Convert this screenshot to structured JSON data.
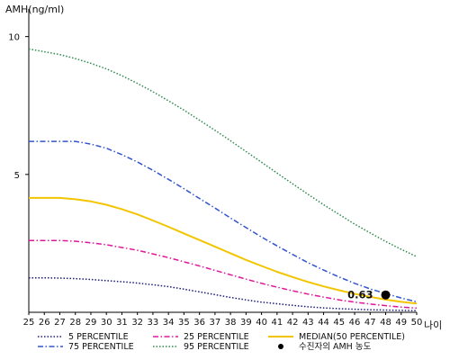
{
  "chart_data": {
    "type": "line",
    "ylabel": "AMH(ng/ml)",
    "xlabel": "나이",
    "x": [
      25,
      26,
      27,
      28,
      29,
      30,
      31,
      32,
      33,
      34,
      35,
      36,
      37,
      38,
      39,
      40,
      41,
      42,
      43,
      44,
      45,
      46,
      47,
      48,
      49,
      50
    ],
    "x_tick_labels": [
      "25",
      "26",
      "27",
      "28",
      "29",
      "30",
      "31",
      "32",
      "33",
      "34",
      "35",
      "36",
      "37",
      "38",
      "39",
      "40",
      "41",
      "42",
      "43",
      "44",
      "45",
      "46",
      "47",
      "48",
      "49",
      "50"
    ],
    "y_ticks": [
      5,
      10
    ],
    "y_tick_labels": [
      "5",
      "10"
    ],
    "ylim": [
      0,
      11
    ],
    "xlim": [
      25,
      50
    ],
    "grid": false,
    "legend_position": "bottom",
    "series": [
      {
        "name": "5 PERCENTILE",
        "color": "#1a1a7a",
        "style": "dotted",
        "values": [
          1.25,
          1.25,
          1.24,
          1.22,
          1.19,
          1.15,
          1.11,
          1.06,
          1.0,
          0.93,
          0.84,
          0.74,
          0.64,
          0.54,
          0.45,
          0.37,
          0.31,
          0.25,
          0.2,
          0.16,
          0.13,
          0.11,
          0.09,
          0.08,
          0.07,
          0.06
        ]
      },
      {
        "name": "25 PERCENTILE",
        "color": "#e0179a",
        "style": "dashdot",
        "values": [
          2.6,
          2.6,
          2.6,
          2.58,
          2.52,
          2.45,
          2.35,
          2.25,
          2.12,
          1.98,
          1.83,
          1.68,
          1.52,
          1.36,
          1.2,
          1.05,
          0.91,
          0.78,
          0.66,
          0.55,
          0.45,
          0.37,
          0.3,
          0.24,
          0.19,
          0.15
        ]
      },
      {
        "name": "MEDIAN(50 PERCENTILE)",
        "color": "#f2c500",
        "style": "solid",
        "values": [
          4.15,
          4.15,
          4.15,
          4.1,
          4.02,
          3.9,
          3.74,
          3.55,
          3.33,
          3.1,
          2.86,
          2.62,
          2.38,
          2.14,
          1.9,
          1.68,
          1.47,
          1.28,
          1.1,
          0.94,
          0.8,
          0.67,
          0.56,
          0.46,
          0.38,
          0.32
        ]
      },
      {
        "name": "75 PERCENTILE",
        "color": "#3355cc",
        "style": "dashdot",
        "values": [
          6.2,
          6.2,
          6.2,
          6.2,
          6.1,
          5.95,
          5.72,
          5.45,
          5.15,
          4.82,
          4.48,
          4.13,
          3.78,
          3.42,
          3.07,
          2.73,
          2.41,
          2.1,
          1.8,
          1.53,
          1.28,
          1.05,
          0.85,
          0.68,
          0.52,
          0.38
        ]
      },
      {
        "name": "95 PERCENTILE",
        "color": "#2e8a4e",
        "style": "dotted",
        "values": [
          9.55,
          9.45,
          9.35,
          9.2,
          9.03,
          8.83,
          8.58,
          8.3,
          8.0,
          7.67,
          7.33,
          6.97,
          6.6,
          6.22,
          5.83,
          5.44,
          5.05,
          4.66,
          4.28,
          3.9,
          3.55,
          3.2,
          2.88,
          2.57,
          2.28,
          2.02
        ]
      }
    ],
    "highlight_point": {
      "name": "수진자의 AMH 농도",
      "x": 48,
      "y": 0.63,
      "label": "0.63",
      "color": "#000000"
    },
    "legend": [
      {
        "name": "5 PERCENTILE",
        "color": "#1a1a7a",
        "style": "dotted"
      },
      {
        "name": "25 PERCENTILE",
        "color": "#e0179a",
        "style": "dashdot"
      },
      {
        "name": "MEDIAN(50 PERCENTILE)",
        "color": "#f2c500",
        "style": "solid"
      },
      {
        "name": "75 PERCENTILE",
        "color": "#3355cc",
        "style": "dashdot"
      },
      {
        "name": "95 PERCENTILE",
        "color": "#2e8a4e",
        "style": "dotted"
      },
      {
        "name": "수진자의 AMH 농도",
        "color": "#000000",
        "style": "marker"
      }
    ]
  }
}
